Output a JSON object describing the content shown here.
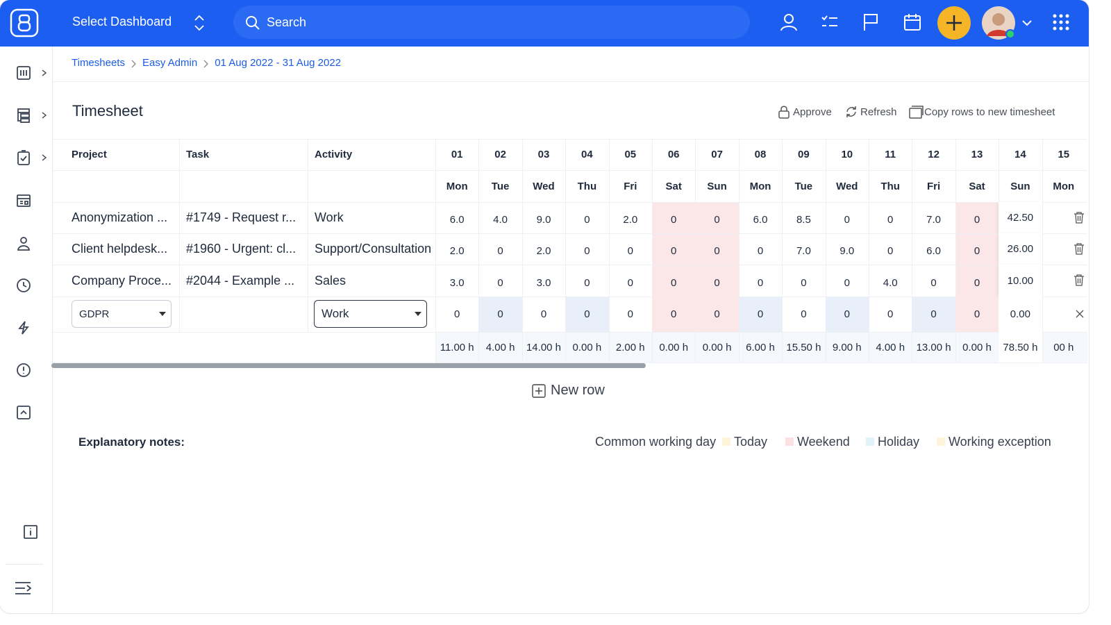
{
  "topbar": {
    "dashboard": "Select Dashboard",
    "search": "Search"
  },
  "breadcrumb": [
    "Timesheets",
    "Easy Admin",
    "01 Aug 2022 - 31 Aug 2022"
  ],
  "title": "Timesheet",
  "actions": [
    "Approve",
    "Refresh",
    "Copy rows to new timesheet"
  ],
  "table": {
    "headers": [
      "Project",
      "Task",
      "Activity"
    ],
    "days": [
      "01",
      "02",
      "03",
      "04",
      "05",
      "06",
      "07",
      "08",
      "09",
      "10",
      "11",
      "12",
      "13",
      "14",
      "15"
    ],
    "weekdays": [
      "Mon",
      "Tue",
      "Wed",
      "Thu",
      "Fri",
      "Sat",
      "Sun",
      "Mon",
      "Tue",
      "Wed",
      "Thu",
      "Fri",
      "Sat",
      "Sun",
      "Mon"
    ],
    "rows": [
      {
        "project": "Anonymization ...",
        "task": "#1749 - Request r...",
        "activity": "Work",
        "hours": [
          "6.0",
          "4.0",
          "9.0",
          "0",
          "2.0",
          "0",
          "0",
          "6.0",
          "8.5",
          "0",
          "0",
          "7.0",
          "0"
        ],
        "total": "42.50"
      },
      {
        "project": "Client helpdesk...",
        "task": "#1960 - Urgent: cl...",
        "activity": "Support/Consultation",
        "hours": [
          "2.0",
          "0",
          "2.0",
          "0",
          "0",
          "0",
          "0",
          "0",
          "7.0",
          "9.0",
          "0",
          "6.0",
          "0"
        ],
        "total": "26.00"
      },
      {
        "project": "Company Proce...",
        "task": "#2044 - Example ...",
        "activity": "Sales",
        "hours": [
          "3.0",
          "0",
          "3.0",
          "0",
          "0",
          "0",
          "0",
          "0",
          "0",
          "0",
          "4.0",
          "0",
          "0"
        ],
        "total": "10.00"
      }
    ],
    "new_row": {
      "project": "GDPR",
      "activity": "Work",
      "hours": [
        "0",
        "0",
        "0",
        "0",
        "0",
        "0",
        "0",
        "0",
        "0",
        "0",
        "0",
        "0",
        "0"
      ],
      "total": "0.00"
    },
    "totals": [
      "11.00 h",
      "4.00 h",
      "14.00 h",
      "0.00 h",
      "2.00 h",
      "0.00 h",
      "0.00 h",
      "6.00 h",
      "15.50 h",
      "9.00 h",
      "4.00 h",
      "13.00 h",
      "0.00 h",
      "78.50 h",
      "00 h"
    ]
  },
  "new_row_button": "New row",
  "notes": {
    "title": "Explanatory notes:",
    "legend": [
      "Common working day",
      "Today",
      "Weekend",
      "Holiday",
      "Working exception"
    ]
  }
}
